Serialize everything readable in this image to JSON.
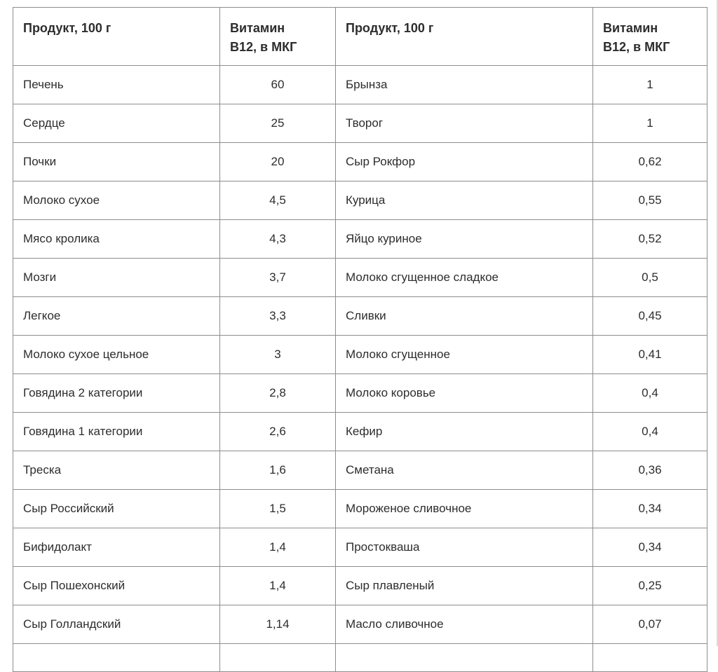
{
  "table": {
    "headers": [
      "Продукт, 100 г",
      "Витамин\nВ12, в МКГ",
      "Продукт, 100 г",
      "Витамин\nВ12, в МКГ"
    ]
  },
  "chart_data": {
    "type": "table",
    "columns": [
      "Продукт, 100 г",
      "Витамин В12, в МКГ",
      "Продукт, 100 г",
      "Витамин В12, в МКГ"
    ],
    "rows": [
      [
        "Печень",
        "60",
        "Брынза",
        "1"
      ],
      [
        "Сердце",
        "25",
        "Творог",
        "1"
      ],
      [
        "Почки",
        "20",
        "Сыр Рокфор",
        "0,62"
      ],
      [
        "Молоко сухое",
        "4,5",
        "Курица",
        "0,55"
      ],
      [
        "Мясо кролика",
        "4,3",
        "Яйцо куриное",
        "0,52"
      ],
      [
        "Мозги",
        "3,7",
        "Молоко сгущенное сладкое",
        "0,5"
      ],
      [
        "Легкое",
        "3,3",
        "Сливки",
        "0,45"
      ],
      [
        "Молоко сухое цельное",
        "3",
        "Молоко сгущенное",
        "0,41"
      ],
      [
        "Говядина 2 категории",
        "2,8",
        "Молоко коровье",
        "0,4"
      ],
      [
        "Говядина 1 категории",
        "2,6",
        "Кефир",
        "0,4"
      ],
      [
        "Треска",
        "1,6",
        "Сметана",
        "0,36"
      ],
      [
        "Сыр Российский",
        "1,5",
        "Мороженое сливочное",
        "0,34"
      ],
      [
        "Бифидолакт",
        "1,4",
        "Простокваша",
        "0,34"
      ],
      [
        "Сыр Пошехонский",
        "1,4",
        "Сыр плавленый",
        "0,25"
      ],
      [
        "Сыр Голландский",
        "1,14",
        "Масло сливочное",
        "0,07"
      ]
    ]
  }
}
